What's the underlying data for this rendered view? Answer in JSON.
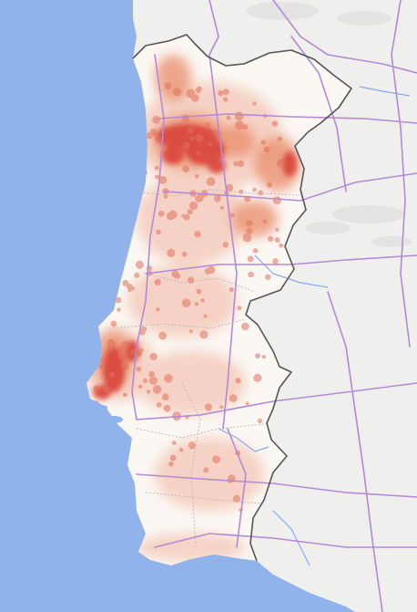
{
  "map": {
    "type": "heatmap",
    "region": "Portugal",
    "colors": {
      "ocean": "#8fb3ea",
      "land_portugal": "#fbf7f3",
      "land_spain": "#efefee",
      "roads": "#b489d6",
      "rivers": "#86aaf0",
      "border": "#555555",
      "admin_lines": "#b7b7b7",
      "heat_low": "#f4c9b8",
      "heat_mid": "#ec8b68",
      "heat_high": "#d9453a"
    },
    "labels": []
  }
}
